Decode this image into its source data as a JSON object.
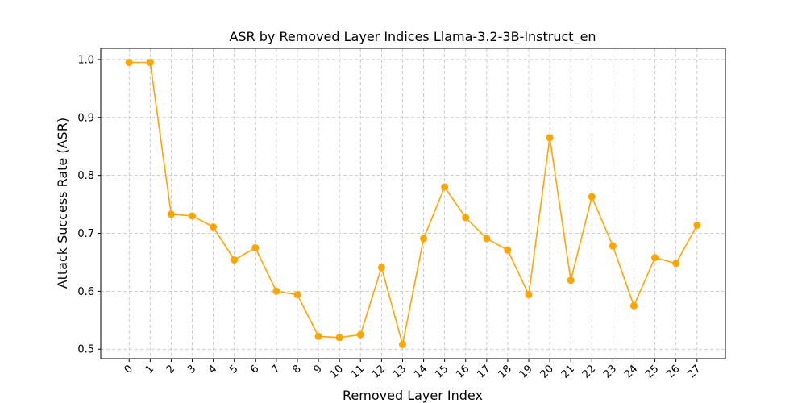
{
  "chart_data": {
    "type": "line",
    "title": "ASR by Removed Layer Indices Llama-3.2-3B-Instruct_en",
    "xlabel": "Removed Layer Index",
    "ylabel": "Attack Success Rate (ASR)",
    "x": [
      0,
      1,
      2,
      3,
      4,
      5,
      6,
      7,
      8,
      9,
      10,
      11,
      12,
      13,
      14,
      15,
      16,
      17,
      18,
      19,
      20,
      21,
      22,
      23,
      24,
      25,
      26,
      27
    ],
    "x_tick_labels": [
      "0",
      "1",
      "2",
      "3",
      "4",
      "5",
      "6",
      "7",
      "8",
      "9",
      "10",
      "11",
      "12",
      "13",
      "14",
      "15",
      "16",
      "17",
      "18",
      "19",
      "20",
      "21",
      "22",
      "23",
      "24",
      "25",
      "26",
      "27"
    ],
    "series": [
      {
        "values": [
          0.995,
          0.995,
          0.733,
          0.73,
          0.711,
          0.654,
          0.675,
          0.6,
          0.594,
          0.522,
          0.52,
          0.525,
          0.641,
          0.508,
          0.691,
          0.78,
          0.727,
          0.691,
          0.671,
          0.594,
          0.865,
          0.619,
          0.763,
          0.678,
          0.575,
          0.658,
          0.648,
          0.714
        ],
        "color": "#ffa500"
      }
    ],
    "y_ticks": [
      0.5,
      0.6,
      0.7,
      0.8,
      0.9,
      1.0
    ],
    "y_tick_labels": [
      "0.5",
      "0.6",
      "0.7",
      "0.8",
      "0.9",
      "1.0"
    ],
    "ylim": [
      0.4836,
      1.0194
    ],
    "xlim": [
      -1.35,
      28.35
    ],
    "grid": true,
    "x_tick_rotation": 45
  }
}
